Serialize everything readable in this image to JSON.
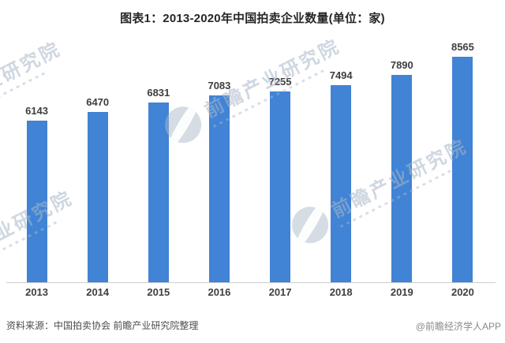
{
  "title": "图表1：2013-2020年中国拍卖企业数量(单位：家)",
  "chart_data": {
    "type": "bar",
    "title": "图表1：2013-2020年中国拍卖企业数量(单位：家)",
    "unit": "家",
    "categories": [
      "2013",
      "2014",
      "2015",
      "2016",
      "2017",
      "2018",
      "2019",
      "2020"
    ],
    "values": [
      6143,
      6470,
      6831,
      7083,
      7255,
      7494,
      7890,
      8565
    ],
    "xlabel": "",
    "ylabel": "",
    "ylim": [
      0,
      8565
    ],
    "grid": false,
    "legend": false,
    "value_labels_shown": true
  },
  "footer": {
    "source": "资料来源：中国拍卖协会 前瞻产业研究院整理",
    "credit": "@前瞻经济学人APP"
  },
  "watermark": {
    "text": "前瞻产业研究院"
  },
  "colors": {
    "bar": "#4183D5",
    "title_text": "#262626",
    "value_label": "#3d3d3d",
    "year_label": "#3f3f3f",
    "axis_line": "#cfcfcf",
    "source_text": "#4d4d4d",
    "credit_text": "#8a8a8a"
  }
}
